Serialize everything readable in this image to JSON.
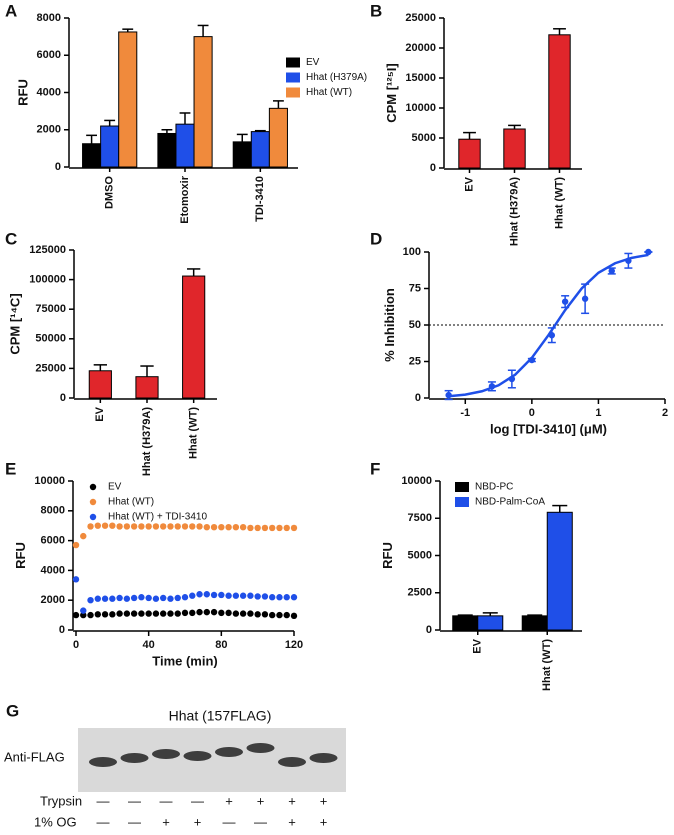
{
  "chart_data": [
    {
      "panel": "A",
      "type": "bar",
      "ylabel": "RFU",
      "categories": [
        "DMSO",
        "Etomoxir",
        "TDI-3410"
      ],
      "series": [
        {
          "name": "EV",
          "color": "#000000",
          "values": [
            1250,
            1800,
            1350
          ],
          "errors": [
            450,
            200,
            400
          ]
        },
        {
          "name": "Hhat (H379A)",
          "color": "#1f4fe8",
          "values": [
            2200,
            2300,
            1900
          ],
          "errors": [
            300,
            600,
            50
          ]
        },
        {
          "name": "Hhat (WT)",
          "color": "#f08a3c",
          "values": [
            7250,
            7000,
            3150
          ],
          "errors": [
            150,
            600,
            400
          ]
        }
      ],
      "ylim": [
        0,
        8000
      ],
      "yticks": [
        0,
        2000,
        4000,
        6000,
        8000
      ],
      "legend": "center right"
    },
    {
      "panel": "B",
      "type": "bar",
      "ylabel": "CPM [¹²⁵I]",
      "categories": [
        "EV",
        "Hhat (H379A)",
        "Hhat (WT)"
      ],
      "values": [
        4800,
        6500,
        22200
      ],
      "errors": [
        1100,
        600,
        1000
      ],
      "color": "#e0262b",
      "ylim": [
        0,
        25000
      ],
      "yticks": [
        0,
        5000,
        10000,
        15000,
        20000,
        25000
      ]
    },
    {
      "panel": "C",
      "type": "bar",
      "ylabel": "CPM [¹⁴C]",
      "categories": [
        "EV",
        "Hhat (H379A)",
        "Hhat (WT)"
      ],
      "values": [
        23000,
        18000,
        103000
      ],
      "errors": [
        5000,
        9000,
        6000
      ],
      "color": "#e0262b",
      "ylim": [
        0,
        125000
      ],
      "yticks": [
        0,
        25000,
        50000,
        75000,
        100000,
        125000
      ]
    },
    {
      "panel": "D",
      "type": "scatter",
      "ylabel": "% Inhibition",
      "xlabel": "log [TDI-3410] (μM)",
      "color": "#1f4fe8",
      "x": [
        -1.25,
        -0.6,
        -0.3,
        0,
        0.3,
        0.5,
        0.8,
        1.2,
        1.45,
        1.75
      ],
      "values": [
        2,
        8,
        13,
        26,
        43,
        66,
        68,
        87,
        94,
        100
      ],
      "errors": [
        3,
        3,
        6,
        1,
        5,
        4,
        10,
        2,
        5,
        0
      ],
      "fit": {
        "x": [
          -1.25,
          -1,
          -0.75,
          -0.5,
          -0.25,
          0,
          0.25,
          0.5,
          0.75,
          1,
          1.25,
          1.5,
          1.75
        ],
        "values": [
          1.2,
          2.3,
          4.6,
          8.7,
          16.0,
          27.5,
          43.1,
          60.2,
          75.1,
          85.8,
          92.3,
          96.0,
          98.0
        ]
      },
      "hline": 50,
      "xlim": [
        -1.5,
        2
      ],
      "xticks": [
        -1,
        0,
        1,
        2
      ],
      "ylim": [
        0,
        100
      ],
      "yticks": [
        0,
        25,
        50,
        75,
        100
      ]
    },
    {
      "panel": "E",
      "type": "scatter",
      "ylabel": "RFU",
      "xlabel": "Time (min)",
      "x": [
        0,
        4,
        8,
        12,
        16,
        20,
        24,
        28,
        32,
        36,
        40,
        44,
        48,
        52,
        56,
        60,
        64,
        68,
        72,
        76,
        80,
        84,
        88,
        92,
        96,
        100,
        104,
        108,
        112,
        116,
        120
      ],
      "series": [
        {
          "name": "EV",
          "color": "#000000",
          "values": [
            1000,
            1000,
            1000,
            1050,
            1050,
            1050,
            1100,
            1100,
            1100,
            1100,
            1100,
            1100,
            1100,
            1100,
            1100,
            1150,
            1150,
            1200,
            1200,
            1200,
            1150,
            1150,
            1100,
            1100,
            1100,
            1050,
            1050,
            1000,
            1000,
            1000,
            950
          ]
        },
        {
          "name": "Hhat (WT)",
          "color": "#f08a3c",
          "values": [
            5700,
            6300,
            6950,
            7000,
            7000,
            7000,
            6950,
            6950,
            6950,
            6950,
            6950,
            6950,
            6950,
            6950,
            6950,
            6950,
            6950,
            6950,
            6900,
            6900,
            6900,
            6900,
            6900,
            6900,
            6850,
            6850,
            6850,
            6850,
            6850,
            6850,
            6850
          ]
        },
        {
          "name": "Hhat (WT) + TDI-3410",
          "color": "#1f4fe8",
          "values": [
            3400,
            1300,
            2000,
            2100,
            2100,
            2100,
            2150,
            2100,
            2150,
            2200,
            2150,
            2100,
            2150,
            2100,
            2150,
            2200,
            2300,
            2400,
            2400,
            2350,
            2350,
            2300,
            2300,
            2300,
            2300,
            2250,
            2250,
            2200,
            2200,
            2200,
            2200
          ]
        }
      ],
      "xlim": [
        0,
        120
      ],
      "xticks": [
        0,
        40,
        80,
        120
      ],
      "ylim": [
        0,
        10000
      ],
      "yticks": [
        0,
        2000,
        4000,
        6000,
        8000,
        10000
      ],
      "legend": "upper left"
    },
    {
      "panel": "F",
      "type": "bar",
      "ylabel": "RFU",
      "categories": [
        "EV",
        "Hhat (WT)"
      ],
      "series": [
        {
          "name": "NBD-PC",
          "color": "#000000",
          "values": [
            950,
            950
          ],
          "errors": [
            50,
            50
          ]
        },
        {
          "name": "NBD-Palm-CoA",
          "color": "#1f4fe8",
          "values": [
            950,
            7900
          ],
          "errors": [
            200,
            450
          ]
        }
      ],
      "ylim": [
        0,
        10000
      ],
      "yticks": [
        0,
        2500,
        5000,
        7500,
        10000
      ],
      "legend": "upper left"
    }
  ],
  "blot": {
    "panel": "G",
    "title": "Hhat (157FLAG)",
    "row_label": "Anti-FLAG",
    "conditions": [
      {
        "label": "Trypsin",
        "signs": [
          "—",
          "—",
          "—",
          "—",
          "+",
          "+",
          "+",
          "+"
        ]
      },
      {
        "label": "1% OG",
        "signs": [
          "—",
          "—",
          "+",
          "+",
          "—",
          "—",
          "+",
          "+"
        ]
      }
    ]
  }
}
